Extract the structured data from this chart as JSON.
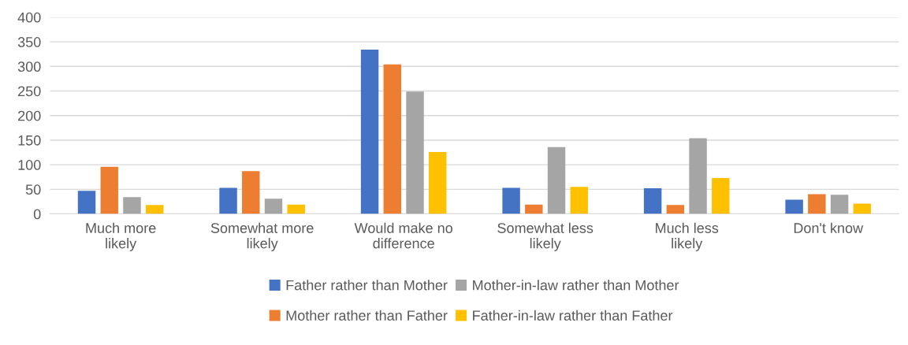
{
  "chart_data": {
    "type": "bar",
    "categories": [
      "Much more likely",
      "Somewhat more likely",
      "Would make no difference",
      "Somewhat less likely",
      "Much less likely",
      "Don't know"
    ],
    "series": [
      {
        "name": "Father rather than Mother",
        "color": "#4472c4",
        "values": [
          47,
          53,
          334,
          53,
          52,
          29
        ]
      },
      {
        "name": "Mother rather than Father",
        "color": "#ed7d31",
        "values": [
          96,
          87,
          304,
          19,
          18,
          40
        ]
      },
      {
        "name": "Mother-in-law rather than Mother",
        "color": "#a5a5a5",
        "values": [
          34,
          31,
          249,
          136,
          154,
          39
        ]
      },
      {
        "name": "Father-in-law rather than Father",
        "color": "#ffc000",
        "values": [
          18,
          19,
          126,
          55,
          73,
          21
        ]
      }
    ],
    "ylim": [
      0,
      400
    ],
    "yticks": [
      0,
      50,
      100,
      150,
      200,
      250,
      300,
      350,
      400
    ],
    "grid": "y",
    "legend": "bottom"
  }
}
